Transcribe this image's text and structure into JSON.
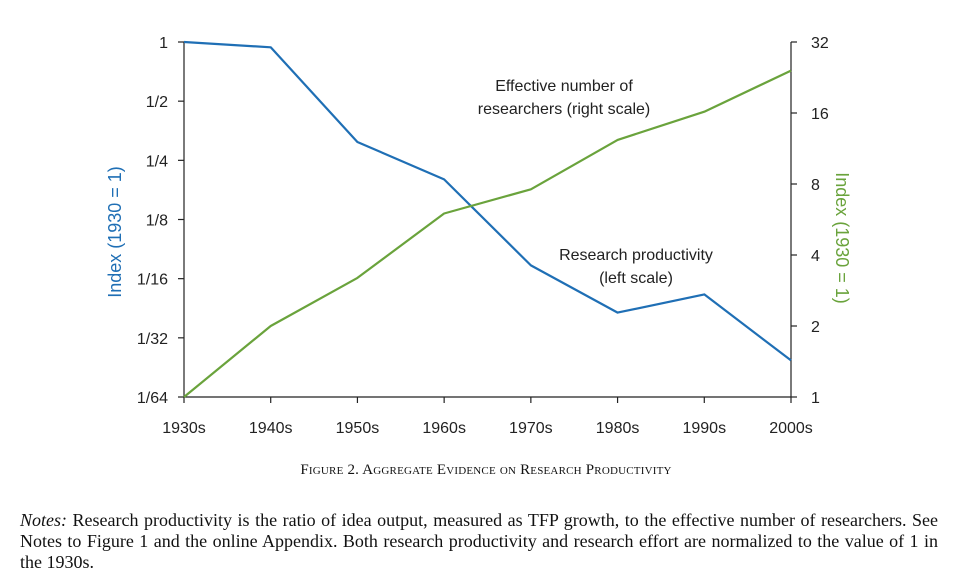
{
  "colors": {
    "left_series": "#1f6fb5",
    "right_series": "#6aa33c",
    "axis": "#222222"
  },
  "chart_data": {
    "type": "line",
    "categories": [
      "1930s",
      "1940s",
      "1950s",
      "1960s",
      "1970s",
      "1980s",
      "1990s",
      "2000s"
    ],
    "left_axis": {
      "label": "Index (1930 = 1)",
      "scale": "log2",
      "ticks": [
        1,
        0.5,
        0.25,
        0.125,
        0.0625,
        0.03125,
        0.015625
      ],
      "tick_labels": [
        "1",
        "1/2",
        "1/4",
        "1/8",
        "1/16",
        "1/32",
        "1/64"
      ],
      "ylim": [
        0.015625,
        1
      ]
    },
    "right_axis": {
      "label": "Index (1930 = 1)",
      "scale": "log2",
      "ticks": [
        1,
        2,
        4,
        8,
        16,
        32
      ],
      "tick_labels": [
        "1",
        "2",
        "4",
        "8",
        "16",
        "32"
      ],
      "ylim": [
        1,
        32
      ]
    },
    "series": [
      {
        "axis": "left",
        "values": [
          1,
          0.94,
          0.31,
          0.2,
          0.073,
          0.042,
          0.052,
          0.024
        ],
        "annotation": [
          "Research productivity",
          "(left scale)"
        ]
      },
      {
        "axis": "right",
        "values": [
          1,
          2,
          3.2,
          6,
          7.6,
          12.3,
          16.2,
          24.2
        ],
        "annotation": [
          "Effective number of",
          "researchers (right scale)"
        ]
      }
    ]
  },
  "caption": "Figure 2. Aggregate Evidence on Research Productivity",
  "notes": {
    "label": "Notes:",
    "text": " Research productivity is the ratio of idea output, measured as TFP growth, to the effective number of researchers. See Notes to Figure 1 and the online Appendix. Both research productivity and research effort are normalized to the value of 1 in the 1930s."
  }
}
